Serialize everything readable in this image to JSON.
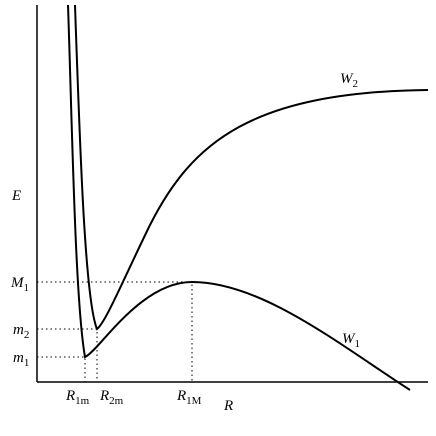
{
  "curves": {
    "upper": {
      "base": "W",
      "sub": "2"
    },
    "lower": {
      "base": "W",
      "sub": "1"
    }
  },
  "axes": {
    "y": "E",
    "x": "R"
  },
  "levels": [
    {
      "base": "M",
      "sub": "1"
    },
    {
      "base": "m",
      "sub": "2"
    },
    {
      "base": "m",
      "sub": "1"
    }
  ],
  "positions": [
    {
      "base": "R",
      "sub": "1m"
    },
    {
      "base": "R",
      "sub": "2m"
    },
    {
      "base": "R",
      "sub": "1M"
    }
  ]
}
